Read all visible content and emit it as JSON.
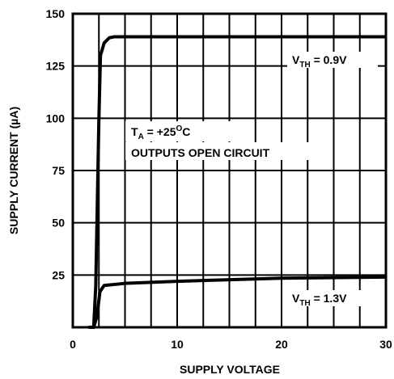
{
  "chart_data": {
    "type": "line",
    "xlabel": "SUPPLY VOLTAGE",
    "ylabel": "SUPPLY CURRENT (µA)",
    "xlim": [
      0,
      30
    ],
    "xticks": [
      0,
      10,
      20,
      30
    ],
    "xminor": [
      2.5,
      5,
      7.5,
      12.5,
      15,
      17.5,
      22.5,
      25,
      27.5
    ],
    "ylim": [
      0,
      150
    ],
    "yticks": [
      25,
      50,
      75,
      100,
      125,
      150
    ],
    "grid": true,
    "annotation": [
      [
        "T",
        "A",
        " = +25",
        "O",
        "C"
      ],
      "OUTPUTS OPEN CIRCUIT"
    ],
    "series": [
      {
        "label": [
          "V",
          "TH",
          " = 0.9V"
        ],
        "color": "#000000",
        "x": [
          1.5,
          2,
          2.2,
          2.5,
          2.65,
          3,
          3.5,
          4,
          30
        ],
        "values": [
          0,
          0,
          20,
          100,
          130,
          136,
          138.5,
          139,
          139
        ]
      },
      {
        "label": [
          "V",
          "TH",
          " = 1.3V"
        ],
        "color": "#000000",
        "x": [
          1.5,
          2,
          2.3,
          2.6,
          3,
          5,
          10,
          20,
          30
        ],
        "values": [
          0,
          0,
          5,
          17,
          20,
          21,
          22,
          23.5,
          24
        ]
      }
    ]
  }
}
